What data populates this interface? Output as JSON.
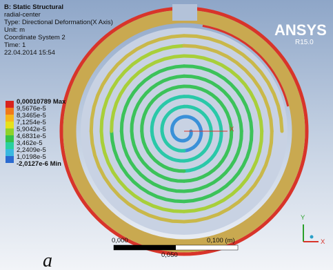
{
  "header": {
    "title": "B: Static Structural",
    "lines": [
      "radial-center",
      "Type: Directional Deformation(X Axis)",
      "Unit: m",
      "Coordinate System 2",
      "Time: 1",
      "22.04.2014 15:54"
    ]
  },
  "legend": {
    "labels": [
      "0,00010789 Max",
      "9,5676e-5",
      "8,3465e-5",
      "7,1254e-5",
      "5,9042e-5",
      "4,6831e-5",
      "3,462e-5",
      "2,2409e-5",
      "1,0198e-5",
      "-2,0127e-6 Min"
    ]
  },
  "logo": {
    "name": "ANSYS",
    "version": "R15.0"
  },
  "center_marker": {
    "label": "X"
  },
  "scale_bar": {
    "start": "0,000",
    "middle": "0,050",
    "end": "0,100 (m)"
  },
  "triad": {
    "y": "Y",
    "x": "X"
  },
  "caption": "a"
}
